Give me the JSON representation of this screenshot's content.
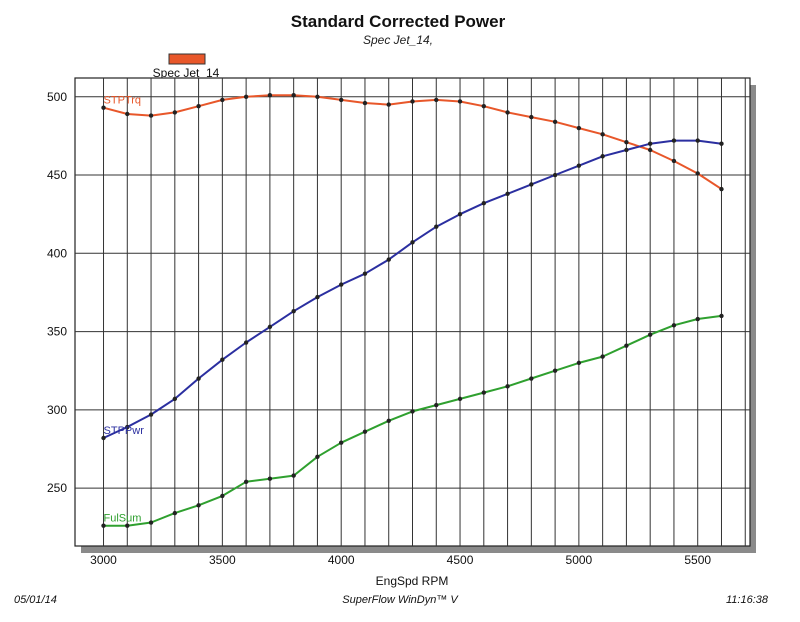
{
  "header": {
    "title": "Standard Corrected Power",
    "subtitle": "Spec Jet_14,"
  },
  "legend": {
    "label": "Spec Jet_14",
    "color": "#e8572a",
    "placement": "top-left"
  },
  "footer": {
    "date": "05/01/14",
    "software": "SuperFlow WinDyn™ V",
    "time": "11:16:38"
  },
  "chart_data": {
    "type": "line",
    "xlabel": "EngSpd RPM",
    "ylabel": "",
    "xlim": [
      2880,
      5720
    ],
    "ylim": [
      213,
      512
    ],
    "xticks": [
      3000,
      3500,
      4000,
      4500,
      5000,
      5500
    ],
    "yticks": [
      250,
      300,
      350,
      400,
      450,
      500
    ],
    "x_gridlines": [
      3000,
      3100,
      3200,
      3300,
      3400,
      3500,
      3600,
      3700,
      3800,
      3900,
      4000,
      4100,
      4200,
      4300,
      4400,
      4500,
      4600,
      4700,
      4800,
      4900,
      5000,
      5100,
      5200,
      5300,
      5400,
      5500,
      5600,
      5700
    ],
    "grid": true,
    "x": [
      3000,
      3100,
      3200,
      3300,
      3400,
      3500,
      3600,
      3700,
      3800,
      3900,
      4000,
      4100,
      4200,
      4300,
      4400,
      4500,
      4600,
      4700,
      4800,
      4900,
      5000,
      5100,
      5200,
      5300,
      5400,
      5500,
      5600
    ],
    "series": [
      {
        "name": "STPTrq",
        "color": "#e8572a",
        "values": [
          493,
          489,
          488,
          490,
          494,
          498,
          500,
          501,
          501,
          500,
          498,
          496,
          495,
          497,
          498,
          497,
          494,
          490,
          487,
          484,
          480,
          476,
          471,
          466,
          459,
          451,
          441
        ]
      },
      {
        "name": "STPPwr",
        "color": "#2b2fa0",
        "values": [
          282,
          289,
          297,
          307,
          320,
          332,
          343,
          353,
          363,
          372,
          380,
          387,
          396,
          407,
          417,
          425,
          432,
          438,
          444,
          450,
          456,
          462,
          466,
          470,
          472,
          472,
          470
        ]
      },
      {
        "name": "FulSum",
        "color": "#2fa02f",
        "values": [
          226,
          226,
          228,
          234,
          239,
          245,
          254,
          256,
          258,
          270,
          279,
          286,
          293,
          299,
          303,
          307,
          311,
          315,
          320,
          325,
          330,
          334,
          341,
          348,
          354,
          358,
          360
        ]
      }
    ]
  }
}
